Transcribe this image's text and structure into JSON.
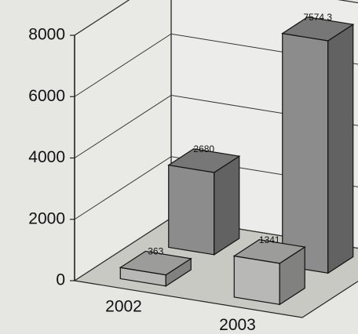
{
  "chart_data": {
    "type": "bar3d",
    "categories": [
      "2002",
      "2003"
    ],
    "series": [
      {
        "color": "#8c8c8c",
        "values": [
          2680,
          7574.3
        ]
      },
      {
        "color": "#b8b8b6",
        "values": [
          363,
          1341
        ]
      }
    ],
    "ylim": [
      0,
      8000
    ],
    "yticks": [
      0,
      2000,
      4000,
      6000,
      8000
    ],
    "grid": true
  }
}
